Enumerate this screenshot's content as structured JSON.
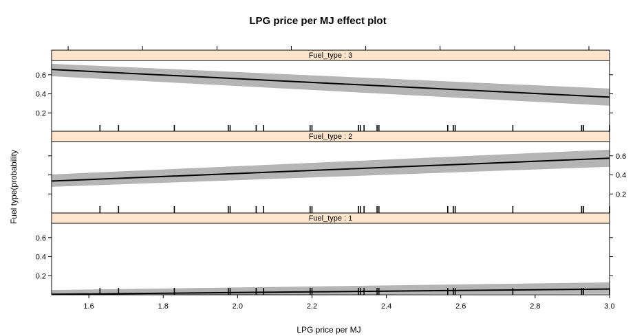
{
  "chart_data": {
    "type": "line",
    "title": "LPG price per MJ effect plot",
    "xlabel": "LPG price per MJ",
    "ylabel": "Fuel type(probability",
    "xlim": [
      1.5,
      3.0
    ],
    "ylim": [
      0.0,
      0.75
    ],
    "x_ticks": [
      1.6,
      1.8,
      2.0,
      2.2,
      2.4,
      2.6,
      2.8,
      3.0
    ],
    "x_tick_labels": [
      "1.6",
      "1.8",
      "2.0",
      "2.2",
      "2.4",
      "2.6",
      "2.8",
      "3.0"
    ],
    "y_ticks": [
      0.2,
      0.4,
      0.6
    ],
    "y_tick_labels": [
      "0.2",
      "0.4",
      "0.6"
    ],
    "grid": false,
    "rug_x": [
      1.63,
      1.68,
      1.83,
      1.975,
      1.98,
      2.05,
      2.07,
      2.195,
      2.2,
      2.325,
      2.33,
      2.34,
      2.375,
      2.38,
      2.565,
      2.58,
      2.585,
      2.74,
      2.925,
      2.93,
      3.0
    ],
    "panels": [
      {
        "strip": "Fuel_type : 3",
        "y_axis_side": "left",
        "x": [
          1.5,
          3.0
        ],
        "fit": [
          0.655,
          0.365
        ],
        "lower": [
          0.585,
          0.275
        ],
        "upper": [
          0.715,
          0.455
        ]
      },
      {
        "strip": "Fuel_type : 2",
        "y_axis_side": "right",
        "x": [
          1.5,
          3.0
        ],
        "fit": [
          0.335,
          0.575
        ],
        "lower": [
          0.275,
          0.485
        ],
        "upper": [
          0.405,
          0.665
        ]
      },
      {
        "strip": "Fuel_type : 1",
        "y_axis_side": "left",
        "x": [
          1.5,
          3.0
        ],
        "fit": [
          0.005,
          0.06
        ],
        "lower": [
          0.0,
          0.01
        ],
        "upper": [
          0.05,
          0.13
        ]
      }
    ]
  }
}
